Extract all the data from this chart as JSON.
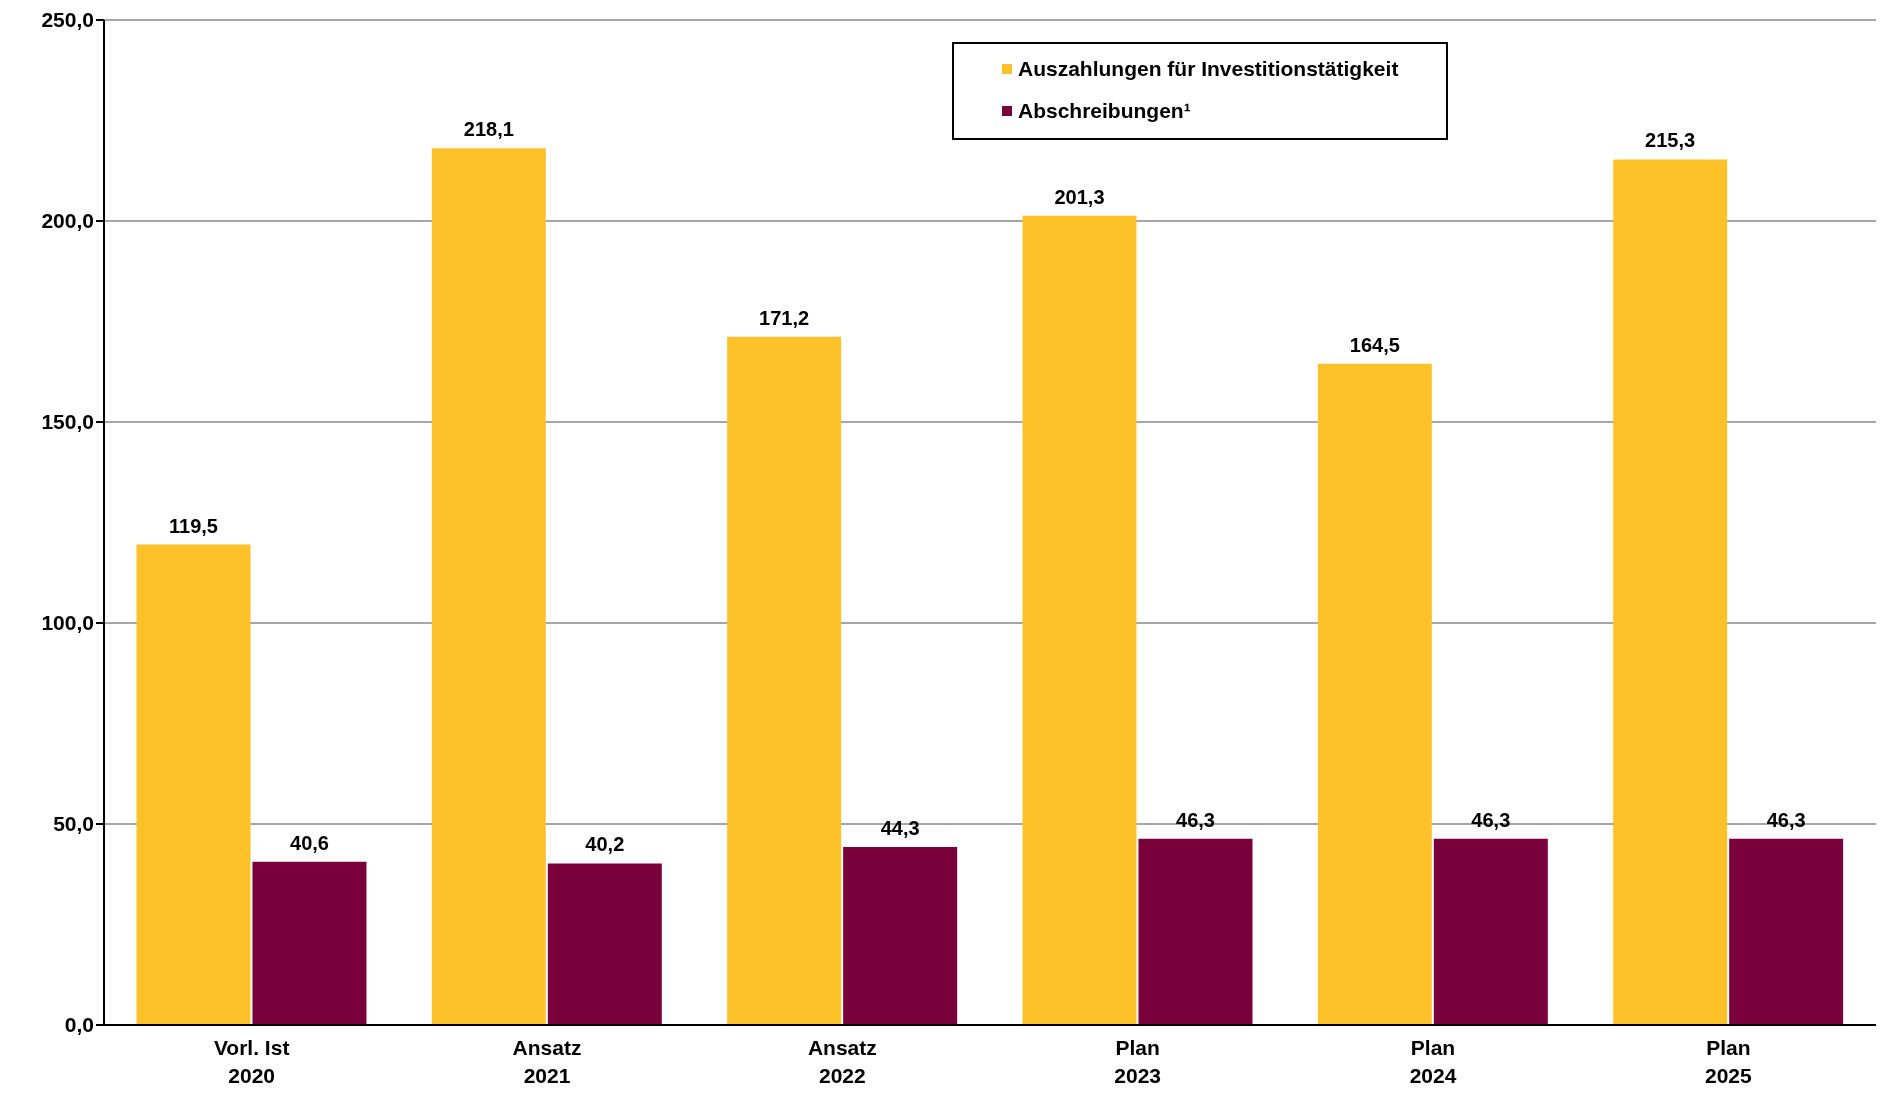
{
  "chart_data": {
    "type": "bar",
    "categories": [
      "Vorl. Ist\n2020",
      "Ansatz\n2021",
      "Ansatz\n2022",
      "Plan\n2023",
      "Plan\n2024",
      "Plan\n2025"
    ],
    "series": [
      {
        "name": "Auszahlungen für Investitionstätigkeit",
        "color": "#fdc22a",
        "values": [
          119.5,
          218.1,
          171.2,
          201.3,
          164.5,
          215.3
        ],
        "value_labels": [
          "119,5",
          "218,1",
          "171,2",
          "201,3",
          "164,5",
          "215,3"
        ]
      },
      {
        "name": "Abschreibungen¹",
        "color": "#7a003c",
        "values": [
          40.6,
          40.2,
          44.3,
          46.3,
          46.3,
          46.3
        ],
        "value_labels": [
          "40,6",
          "40,2",
          "44,3",
          "46,3",
          "46,3",
          "46,3"
        ]
      }
    ],
    "ylim": [
      0,
      250
    ],
    "yticks": [
      {
        "value": 0,
        "label": "0,0"
      },
      {
        "value": 50,
        "label": "50,0"
      },
      {
        "value": 100,
        "label": "100,0"
      },
      {
        "value": 150,
        "label": "150,0"
      },
      {
        "value": 200,
        "label": "200,0"
      },
      {
        "value": 250,
        "label": "250,0"
      }
    ],
    "grid": "y",
    "legend": "top"
  }
}
